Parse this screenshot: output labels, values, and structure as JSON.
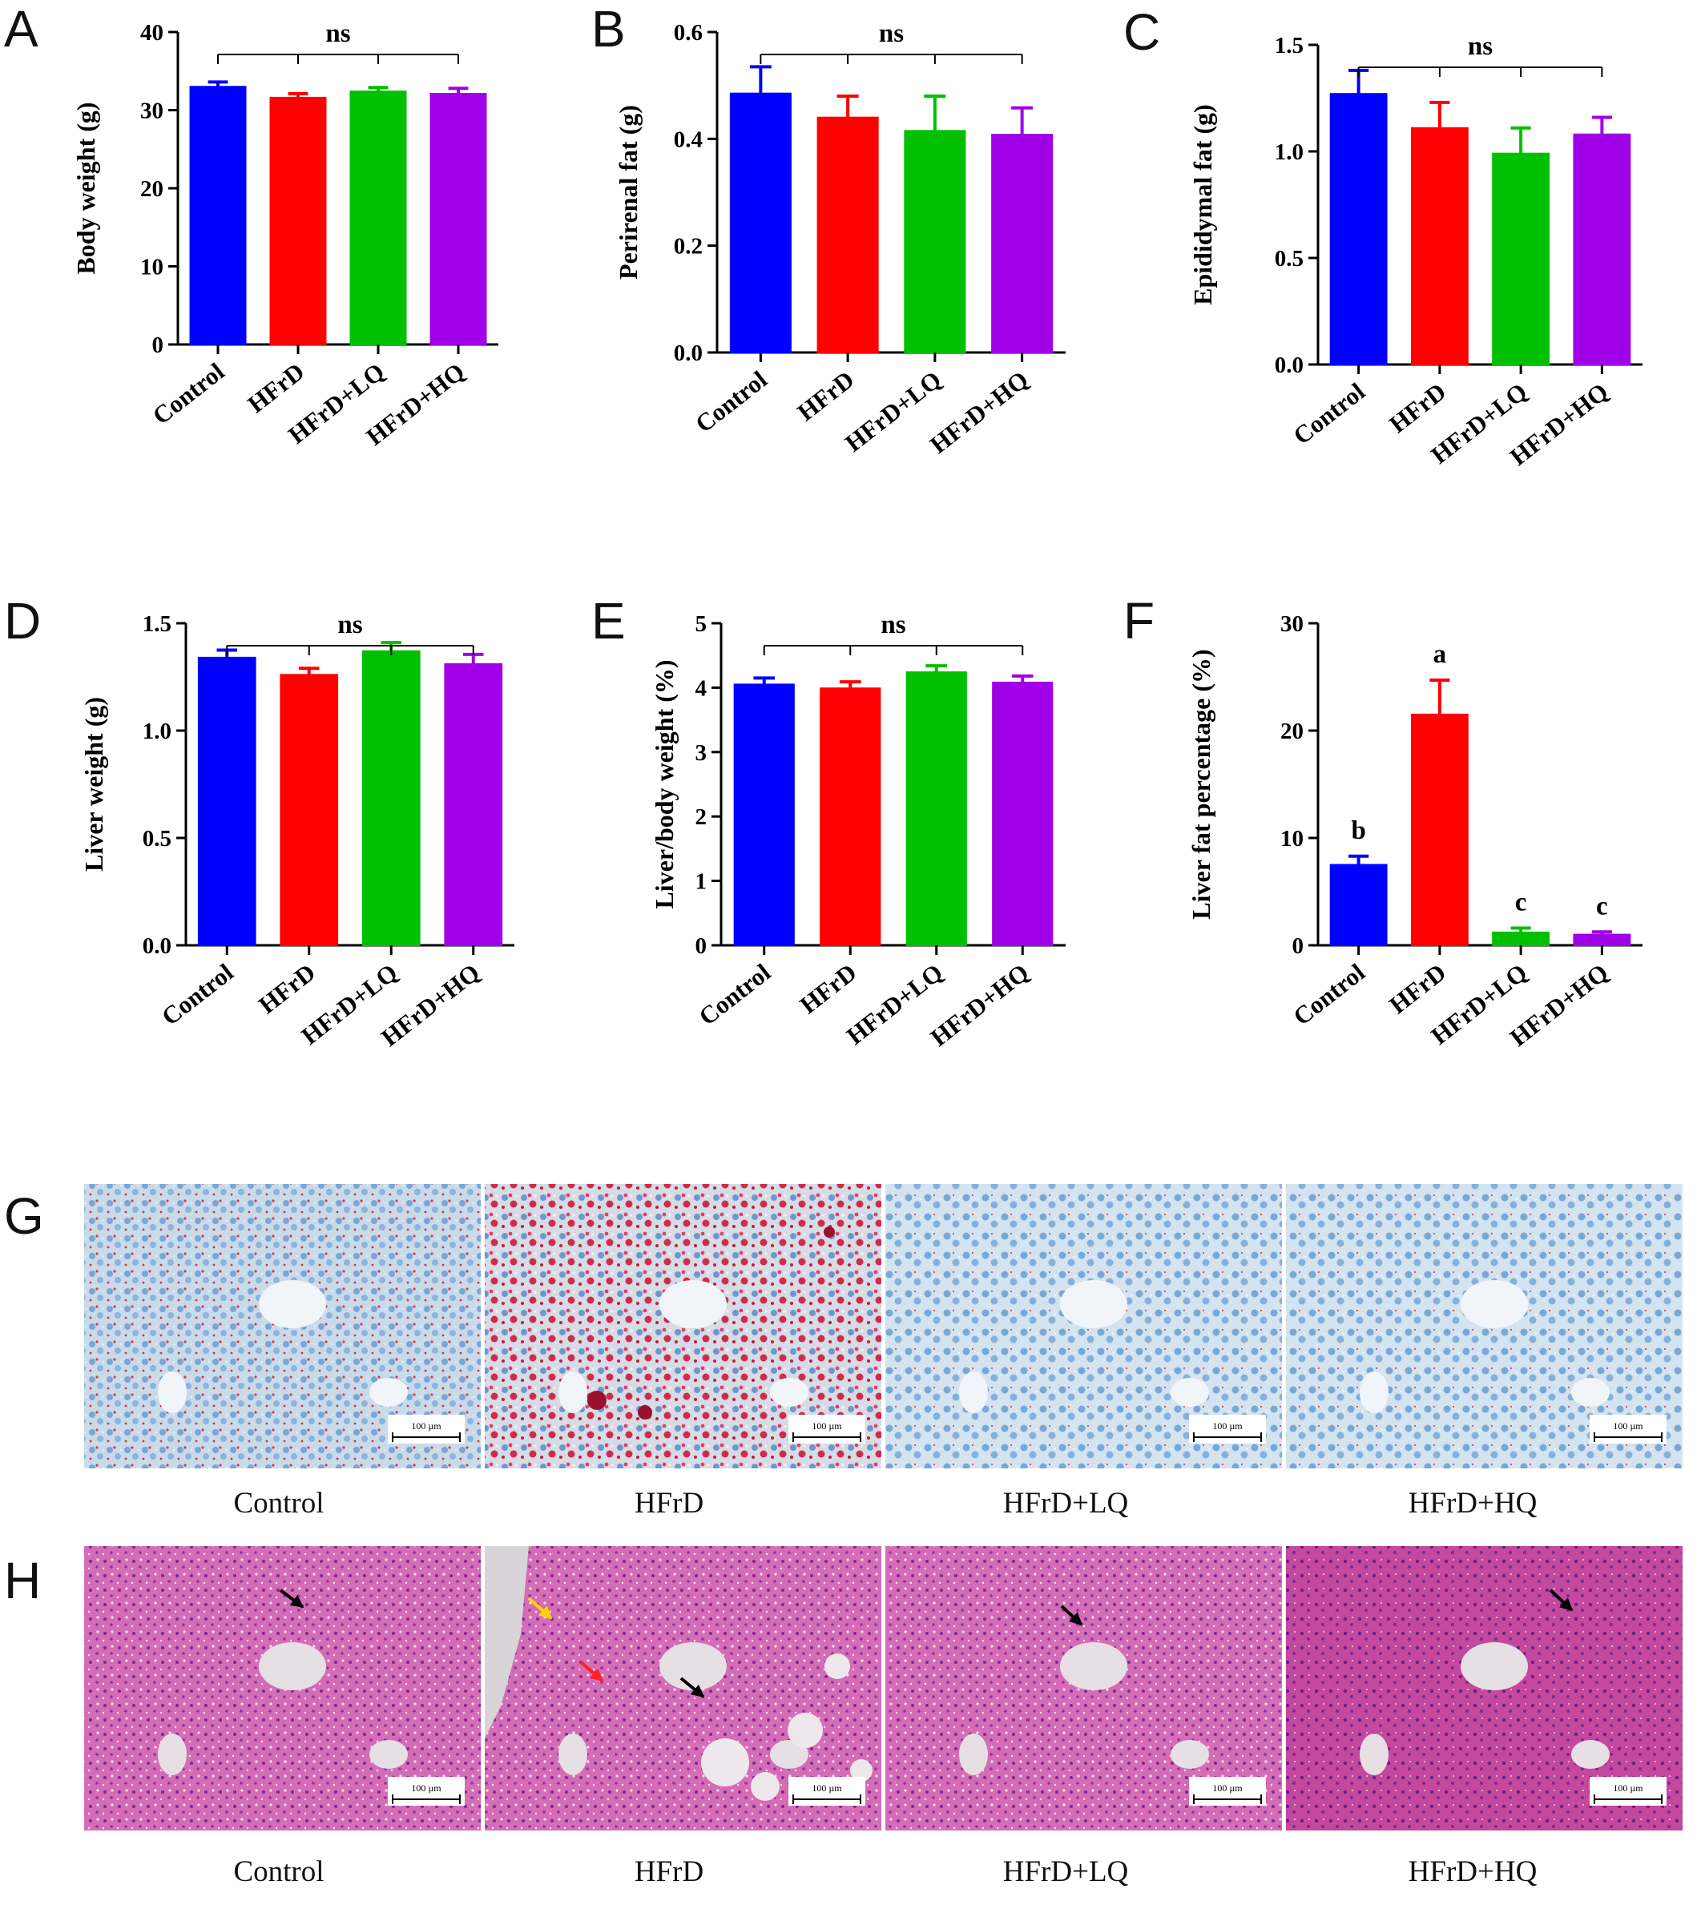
{
  "colors": {
    "Control": "#0000ff",
    "HFrD": "#ff0000",
    "HFrD+LQ": "#00c000",
    "HFrD+HQ": "#a000e8",
    "axis": "#000000",
    "oil_red_bg": "#c6d8e6",
    "he_bg": "#d05cb0"
  },
  "chart_data": [
    {
      "id": "A",
      "type": "bar",
      "letter": "A",
      "categories": [
        "Control",
        "HFrD",
        "HFrD+LQ",
        "HFrD+HQ"
      ],
      "values": [
        33.0,
        31.6,
        32.4,
        32.1
      ],
      "errors": [
        0.6,
        0.5,
        0.5,
        0.7
      ],
      "ylabel": "Body weight (g)",
      "ylim": [
        0,
        40
      ],
      "yticks": [
        0,
        10,
        20,
        30,
        40
      ],
      "tick_labels": [
        "0",
        "10",
        "20",
        "30",
        "40"
      ],
      "significance": "ns",
      "letters": []
    },
    {
      "id": "B",
      "type": "bar",
      "letter": "B",
      "categories": [
        "Control",
        "HFrD",
        "HFrD+LQ",
        "HFrD+HQ"
      ],
      "values": [
        0.485,
        0.44,
        0.415,
        0.408
      ],
      "errors": [
        0.05,
        0.04,
        0.065,
        0.05
      ],
      "ylabel": "Perirenal fat (g)",
      "ylim": [
        0,
        0.6
      ],
      "yticks": [
        0,
        0.2,
        0.4,
        0.6
      ],
      "tick_labels": [
        "0.0",
        "0.2",
        "0.4",
        "0.6"
      ],
      "significance": "ns",
      "letters": []
    },
    {
      "id": "C",
      "type": "bar",
      "letter": "C",
      "categories": [
        "Control",
        "HFrD",
        "HFrD+LQ",
        "HFrD+HQ"
      ],
      "values": [
        1.27,
        1.11,
        0.99,
        1.08
      ],
      "errors": [
        0.11,
        0.12,
        0.12,
        0.08
      ],
      "ylabel": "Epididymal fat (g)",
      "ylim": [
        0,
        1.5
      ],
      "yticks": [
        0,
        0.5,
        1.0,
        1.5
      ],
      "tick_labels": [
        "0.0",
        "0.5",
        "1.0",
        "1.5"
      ],
      "significance": "ns",
      "letters": []
    },
    {
      "id": "D",
      "type": "bar",
      "letter": "D",
      "categories": [
        "Control",
        "HFrD",
        "HFrD+LQ",
        "HFrD+HQ"
      ],
      "values": [
        1.34,
        1.26,
        1.37,
        1.31
      ],
      "errors": [
        0.035,
        0.03,
        0.04,
        0.045
      ],
      "ylabel": "Liver weight (g)",
      "ylim": [
        0,
        1.5
      ],
      "yticks": [
        0,
        0.5,
        1.0,
        1.5
      ],
      "tick_labels": [
        "0.0",
        "0.5",
        "1.0",
        "1.5"
      ],
      "significance": "ns",
      "letters": []
    },
    {
      "id": "E",
      "type": "bar",
      "letter": "E",
      "categories": [
        "Control",
        "HFrD",
        "HFrD+LQ",
        "HFrD+HQ"
      ],
      "values": [
        4.05,
        3.99,
        4.24,
        4.08
      ],
      "errors": [
        0.1,
        0.1,
        0.1,
        0.1
      ],
      "ylabel": "Liver/body weight (%)",
      "ylim": [
        0,
        5
      ],
      "yticks": [
        0,
        1,
        2,
        3,
        4,
        5
      ],
      "tick_labels": [
        "0",
        "1",
        "2",
        "3",
        "4",
        "5"
      ],
      "significance": "ns",
      "letters": []
    },
    {
      "id": "F",
      "type": "bar",
      "letter": "F",
      "categories": [
        "Control",
        "HFrD",
        "HFrD+LQ",
        "HFrD+HQ"
      ],
      "values": [
        7.5,
        21.5,
        1.2,
        1.0
      ],
      "errors": [
        0.8,
        3.2,
        0.4,
        0.25
      ],
      "ylabel": "Liver fat percentage (%)",
      "ylim": [
        0,
        30
      ],
      "yticks": [
        0,
        10,
        20,
        30
      ],
      "tick_labels": [
        "0",
        "10",
        "20",
        "30"
      ],
      "significance": "",
      "letters": [
        "b",
        "a",
        "c",
        "c"
      ]
    }
  ],
  "micrographs": {
    "G": {
      "letter": "G",
      "stain": "oil-red",
      "captions": [
        "Control",
        "HFrD",
        "HFrD+LQ",
        "HFrD+HQ"
      ],
      "scale_bar": "100 µm"
    },
    "H": {
      "letter": "H",
      "stain": "he",
      "captions": [
        "Control",
        "HFrD",
        "HFrD+LQ",
        "HFrD+HQ"
      ],
      "scale_bar": "100 µm",
      "arrows": [
        {
          "panel": 0,
          "color": "#000000"
        },
        {
          "panel": 1,
          "color": "#ffd400"
        },
        {
          "panel": 1,
          "color": "#ff2020"
        },
        {
          "panel": 1,
          "color": "#000000"
        },
        {
          "panel": 2,
          "color": "#000000"
        },
        {
          "panel": 3,
          "color": "#000000"
        }
      ]
    }
  }
}
